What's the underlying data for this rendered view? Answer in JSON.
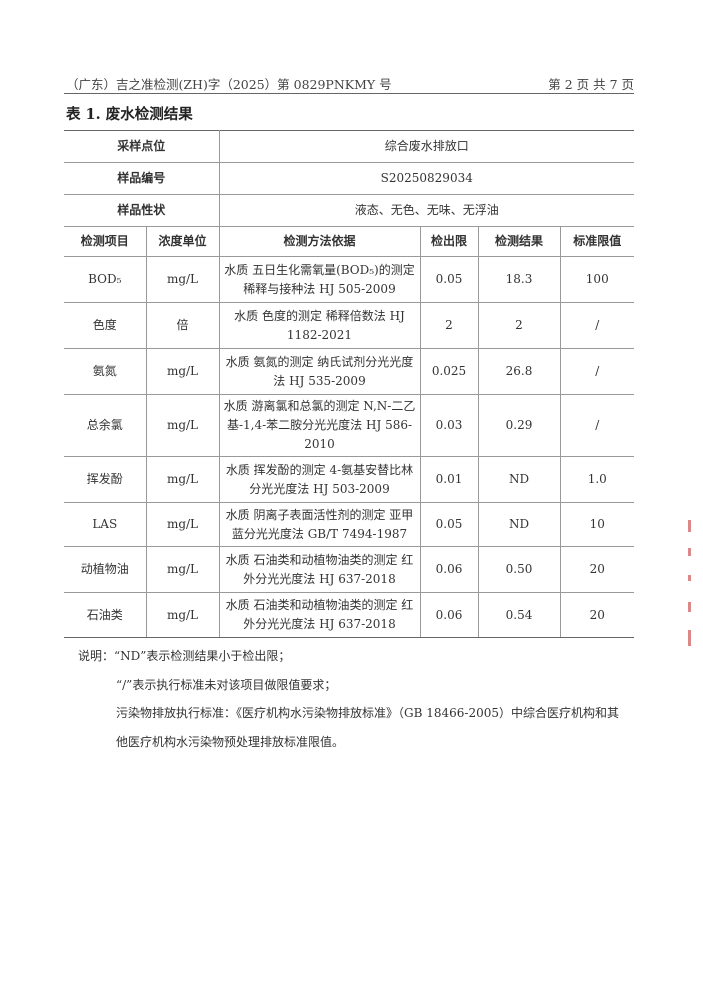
{
  "header": {
    "report_no": "（广东）吉之准检测(ZH)字（2025）第 0829PNKMY 号",
    "page": "第 2 页 共 7 页"
  },
  "table_title": "表 1. 废水检测结果",
  "info": [
    {
      "label": "采样点位",
      "value": "综合废水排放口"
    },
    {
      "label": "样品编号",
      "value": "S20250829034"
    },
    {
      "label": "样品性状",
      "value": "液态、无色、无味、无浮油"
    }
  ],
  "columns": [
    "检测项目",
    "浓度单位",
    "检测方法依据",
    "检出限",
    "检测结果",
    "标准限值"
  ],
  "rows": [
    {
      "item": "BOD₅",
      "unit": "mg/L",
      "method": "水质  五日生化需氧量(BOD₅)的测定  稀释与接种法 HJ 505-2009",
      "limit": "0.05",
      "result": "18.3",
      "standard": "100"
    },
    {
      "item": "色度",
      "unit": "倍",
      "method": "水质  色度的测定  稀释倍数法 HJ 1182-2021",
      "limit": "2",
      "result": "2",
      "standard": "/"
    },
    {
      "item": "氨氮",
      "unit": "mg/L",
      "method": "水质  氨氮的测定  纳氏试剂分光光度法  HJ 535-2009",
      "limit": "0.025",
      "result": "26.8",
      "standard": "/"
    },
    {
      "item": "总余氯",
      "unit": "mg/L",
      "method": "水质  游离氯和总氯的测定 N,N-二乙基-1,4-苯二胺分光光度法  HJ 586-2010",
      "limit": "0.03",
      "result": "0.29",
      "standard": "/"
    },
    {
      "item": "挥发酚",
      "unit": "mg/L",
      "method": "水质  挥发酚的测定  4-氨基安替比林分光光度法  HJ 503-2009",
      "limit": "0.01",
      "result": "ND",
      "standard": "1.0"
    },
    {
      "item": "LAS",
      "unit": "mg/L",
      "method": "水质  阴离子表面活性剂的测定  亚甲蓝分光光度法 GB/T 7494-1987",
      "limit": "0.05",
      "result": "ND",
      "standard": "10"
    },
    {
      "item": "动植物油",
      "unit": "mg/L",
      "method": "水质  石油类和动植物油类的测定 红外分光光度法  HJ 637-2018",
      "limit": "0.06",
      "result": "0.50",
      "standard": "20"
    },
    {
      "item": "石油类",
      "unit": "mg/L",
      "method": "水质  石油类和动植物油类的测定 红外分光光度法  HJ 637-2018",
      "limit": "0.06",
      "result": "0.54",
      "standard": "20"
    }
  ],
  "notes": {
    "n1": "说明：“ND”表示检测结果小于检出限；",
    "n2": "“/”表示执行标准未对该项目做限值要求；",
    "n3": "污染物排放执行标准：《医疗机构水污染物排放标准》（GB 18466-2005）中综合医疗机构和其",
    "n4": "他医疗机构水污染物预处理排放标准限值。"
  }
}
